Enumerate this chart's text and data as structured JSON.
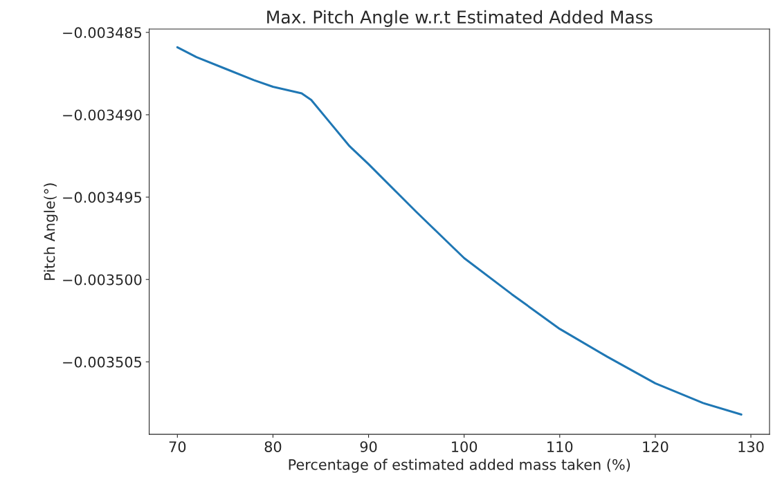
{
  "chart_data": {
    "type": "line",
    "title": "Max. Pitch Angle w.r.t Estimated Added Mass",
    "xlabel": "Percentage of estimated added mass taken (%)",
    "ylabel": "Pitch Angle(°)",
    "x": [
      70,
      72,
      75,
      78,
      80,
      83,
      84,
      86,
      88,
      90,
      95,
      100,
      105,
      110,
      115,
      120,
      125,
      129
    ],
    "series": [
      {
        "color": "#1f77b4",
        "values": [
          -0.0034859,
          -0.0034865,
          -0.0034872,
          -0.0034879,
          -0.0034883,
          -0.0034887,
          -0.0034891,
          -0.0034905,
          -0.0034919,
          -0.003493,
          -0.0034959,
          -0.0034987,
          -0.0035009,
          -0.003503,
          -0.0035047,
          -0.0035063,
          -0.0035075,
          -0.0035082
        ]
      }
    ],
    "xlim": [
      67.05,
      131.95
    ],
    "xticks": [
      70,
      80,
      90,
      100,
      110,
      120,
      130
    ],
    "ylim": [
      -0.0035094,
      -0.0034848
    ],
    "yticks": [
      {
        "value": -0.003485,
        "label": "−0.003485"
      },
      {
        "value": -0.00349,
        "label": "−0.003490"
      },
      {
        "value": -0.003495,
        "label": "−0.003495"
      },
      {
        "value": -0.0035,
        "label": "−0.003500"
      },
      {
        "value": -0.003505,
        "label": "−0.003505"
      }
    ],
    "grid": false,
    "legend": false,
    "marker": "none",
    "line_style": "solid"
  }
}
